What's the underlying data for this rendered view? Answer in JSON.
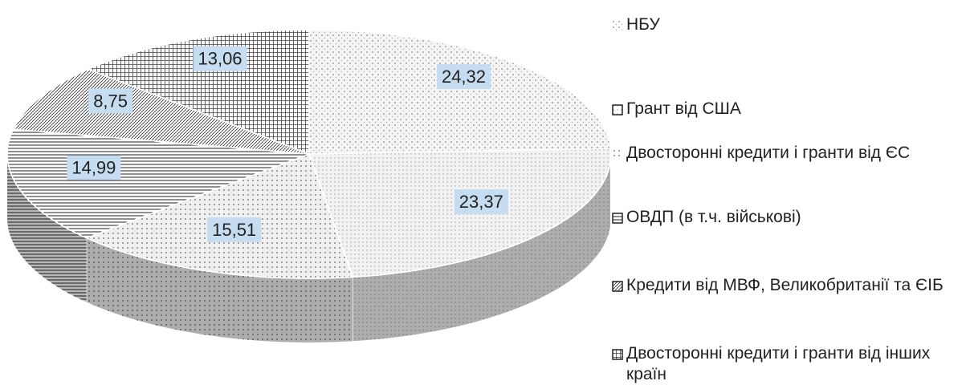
{
  "chart_data": {
    "type": "pie",
    "categories": [
      "НБУ",
      "Грант від США",
      "Двосторонні кредити і гранти від ЄС",
      "ОВДП (в т.ч. військові)",
      "Кредити від МВФ, Великобританії та ЄІБ",
      "Двосторонні кредити і гранти від інших країн"
    ],
    "values": [
      24.32,
      23.37,
      15.51,
      14.99,
      8.75,
      13.06
    ],
    "value_labels": [
      "24,32",
      "23,37",
      "15,51",
      "14,99",
      "8,75",
      "13,06"
    ],
    "colors": [
      "#f4f4f4",
      "#f2f2f2",
      "#f0f0f0",
      "#ffffff",
      "#ffffff",
      "#f7f7f7"
    ]
  }
}
